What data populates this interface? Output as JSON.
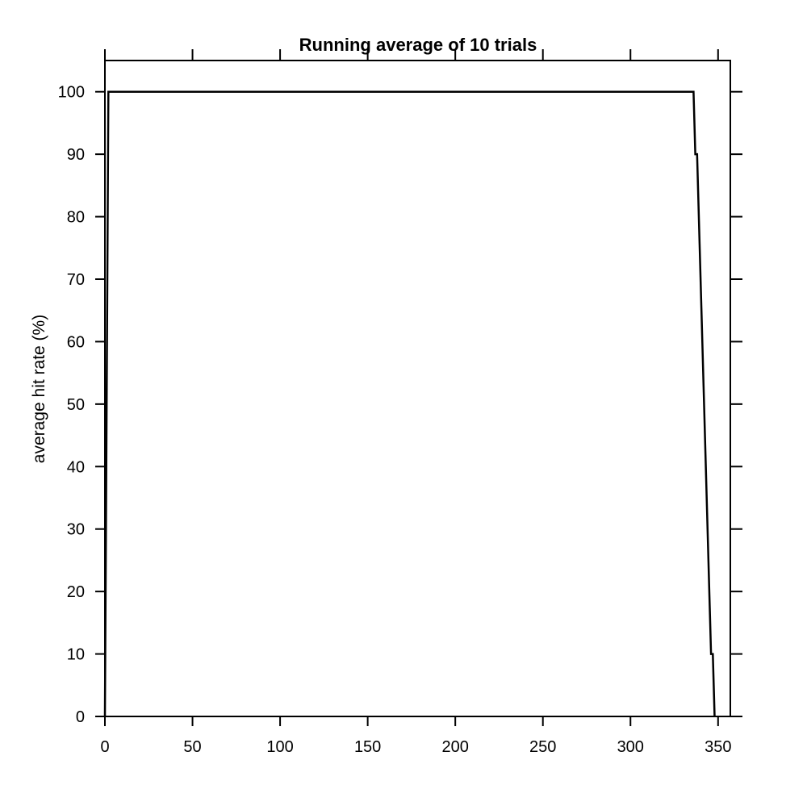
{
  "chart_data": {
    "type": "line",
    "title": "Running average of 10 trials",
    "xlabel": "",
    "ylabel": "average hit rate (%)",
    "xlim": [
      0,
      357
    ],
    "ylim": [
      0,
      105
    ],
    "x_ticks": [
      0,
      50,
      100,
      150,
      200,
      250,
      300,
      350
    ],
    "y_ticks": [
      0,
      10,
      20,
      30,
      40,
      50,
      60,
      70,
      80,
      90,
      100
    ],
    "grid": false,
    "series": [
      {
        "color": "#000000",
        "x": [
          0,
          2,
          336,
          337,
          338,
          346,
          347,
          348
        ],
        "y": [
          0,
          100,
          100,
          90,
          90,
          10,
          10,
          0
        ]
      }
    ]
  }
}
